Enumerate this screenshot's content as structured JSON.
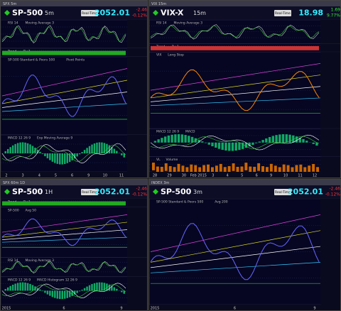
{
  "panels": [
    {
      "window": "SPX 5m",
      "symbol": "SP-500",
      "interval": "5m",
      "button": "Real-Time",
      "price": "2052.01",
      "change": "-2.46",
      "change_pct": "-0.12%",
      "panes": [
        {
          "label": "RSI 14",
          "extra": "Moving Average 3"
        },
        {
          "label": "Trend",
          "extra": "D+1"
        },
        {
          "label": "SP-500 Standard & Poors 500",
          "extra": "Pivot Points"
        },
        {
          "label": "MACD 12 26 9",
          "extra": "Exp Moving Average 9"
        }
      ],
      "x_labels": [
        "2",
        "3",
        "4",
        "5",
        "6",
        "9",
        "10",
        "11"
      ]
    },
    {
      "window": "VIX 15m",
      "symbol": "VIX-X",
      "interval": "15m",
      "button": "Real-Time",
      "price": "18.98",
      "change": "1.69",
      "change_pct": "9.77%",
      "panes": [
        {
          "label": "RSI 14",
          "extra": "Moving Average 3"
        },
        {
          "label": "Trend",
          "extra": "D+1"
        },
        {
          "label": "VIX",
          "extra": "Long Stop"
        },
        {
          "label": "MACD 12 26 9",
          "extra": "MACD"
        },
        {
          "label": "VL",
          "extra": "Volume"
        }
      ],
      "x_labels": [
        "28",
        "29",
        "30",
        "Feb 2015",
        "3",
        "4",
        "5",
        "6",
        "9",
        "10",
        "11",
        "12"
      ]
    },
    {
      "window": "SPX 60m 1D",
      "symbol": "SP-500",
      "interval": "1H",
      "button": "Real-Time",
      "price": "2052.01",
      "change": "-2.46",
      "change_pct": "-0.12%",
      "panes": [
        {
          "label": "Trend",
          "extra": "D+1"
        },
        {
          "label": "SP-500",
          "extra": "Avg 50"
        },
        {
          "label": "RSI 14",
          "extra": "Moving Average 3"
        },
        {
          "label": "MACD 12 26 9",
          "extra": "MACD Histogram 12 26 9"
        }
      ],
      "x_labels": [
        "2015",
        "6",
        "9"
      ]
    },
    {
      "window": "INDEX 3m",
      "symbol": "SP-500",
      "interval": "3m",
      "button": "Real-Time",
      "price": "2052.01",
      "change": "-2.46",
      "change_pct": "-0.12%",
      "panes": [
        {
          "label": "SP-500 Standard & Poors 500",
          "extra": "Avg 200"
        }
      ],
      "x_labels": [
        "2015",
        "6",
        "9"
      ]
    }
  ]
}
